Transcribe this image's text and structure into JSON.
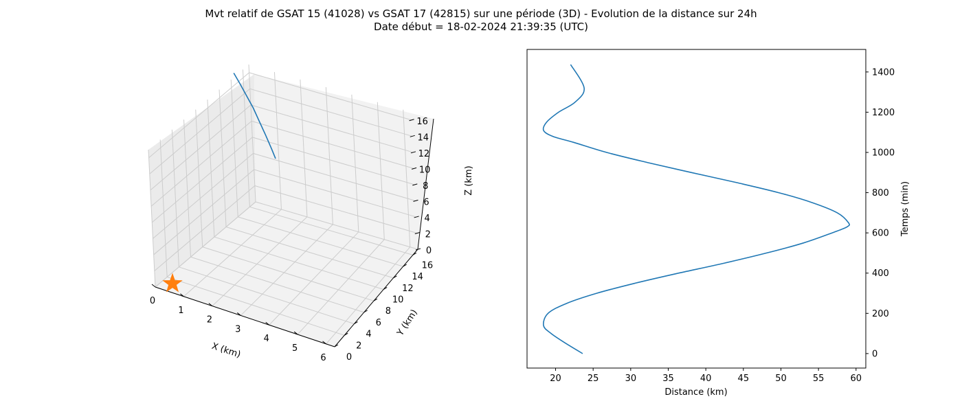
{
  "figure": {
    "title_line1": "Mvt relatif de GSAT 15 (41028) vs GSAT 17 (42815) sur une période (3D) - Evolution de la distance sur 24h",
    "title_line2": "Date début = 18-02-2024 21:39:35 (UTC)"
  },
  "colors": {
    "series": "#1f77b4",
    "marker": "#ff7f0e",
    "pane": "#f2f2f2",
    "grid": "#cccccc"
  },
  "chart_data": [
    {
      "type": "line3d",
      "xlabel": "X (km)",
      "ylabel": "Y (km)",
      "zlabel": "Z (km)",
      "xlim": [
        0,
        6.3
      ],
      "ylim": [
        0,
        17
      ],
      "zlim": [
        0,
        17
      ],
      "x_ticks": [
        "0",
        "1",
        "2",
        "3",
        "4",
        "5",
        "6"
      ],
      "y_ticks": [
        "0",
        "2",
        "4",
        "6",
        "8",
        "10",
        "12",
        "14",
        "16"
      ],
      "z_ticks": [
        "0",
        "2",
        "4",
        "6",
        "8",
        "10",
        "12",
        "14",
        "16"
      ],
      "grid": true,
      "series": [
        {
          "x": [
            0.0,
            0.3,
            0.6,
            0.9,
            1.2,
            1.5,
            1.8,
            2.0
          ],
          "y": [
            14.5,
            14.2,
            13.9,
            13.6,
            13.2,
            12.8,
            12.4,
            12.1
          ],
          "z": [
            17.5,
            16.6,
            15.6,
            14.6,
            13.5,
            12.4,
            11.2,
            10.4
          ]
        }
      ],
      "marker": {
        "symbol": "star",
        "x": 0,
        "y": 0,
        "z": 0
      }
    },
    {
      "type": "line",
      "xlabel": "Distance (km)",
      "ylabel": "Temps (min)",
      "xlim": [
        16.2,
        61.3
      ],
      "ylim": [
        -72,
        1512
      ],
      "x_ticks": [
        20,
        25,
        30,
        35,
        40,
        45,
        50,
        55,
        60
      ],
      "y_ticks": [
        0,
        200,
        400,
        600,
        800,
        1000,
        1200,
        1400
      ],
      "y_axis_position": "right",
      "grid": false,
      "series": [
        {
          "x": [
            23.6,
            21.4,
            19.4,
            18.4,
            19.0,
            21.5,
            25.5,
            30.6,
            36.4,
            42.5,
            48.1,
            53.0,
            56.8,
            58.8,
            59.0,
            57.5,
            54.2,
            49.7,
            44.1,
            38.1,
            32.2,
            26.8,
            22.4,
            19.6,
            18.4,
            18.8,
            20.4,
            22.6,
            23.8,
            22.0
          ],
          "y": [
            0,
            50,
            100,
            140,
            200,
            250,
            300,
            350,
            400,
            450,
            500,
            550,
            600,
            630,
            650,
            700,
            750,
            800,
            850,
            900,
            950,
            1000,
            1050,
            1080,
            1110,
            1150,
            1200,
            1250,
            1320,
            1437
          ]
        }
      ]
    }
  ]
}
